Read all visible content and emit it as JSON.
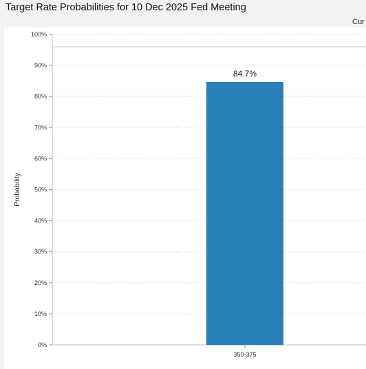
{
  "title": "Target Rate Probabilities for 10 Dec 2025 Fed Meeting",
  "header": {
    "current_label": "Cur"
  },
  "colors": {
    "bar": "#2a80b9",
    "background": "#f2f2f2",
    "plot_background": "#ffffff",
    "grid": "#d4d4d4"
  },
  "chart_data": {
    "type": "bar",
    "title": "Target Rate Probabilities for 10 Dec 2025 Fed Meeting",
    "xlabel": "",
    "ylabel": "Probability",
    "categories": [
      "350-375"
    ],
    "values": [
      84.7
    ],
    "data_labels": [
      "84.7%"
    ],
    "ylim": [
      0,
      100
    ],
    "yticks": [
      0,
      10,
      20,
      30,
      40,
      50,
      60,
      70,
      80,
      90,
      100
    ],
    "ytick_labels": [
      "0%",
      "10%",
      "20%",
      "30%",
      "40%",
      "50%",
      "60%",
      "70%",
      "80%",
      "90%",
      "100%"
    ],
    "grid": true,
    "legend": "none"
  }
}
